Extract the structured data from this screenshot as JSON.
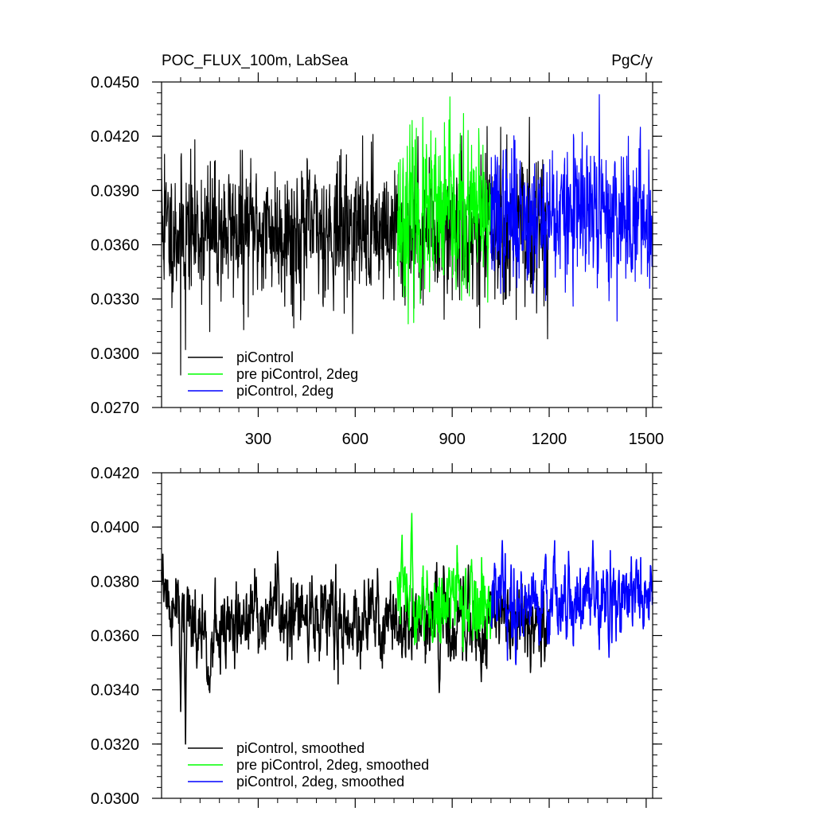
{
  "colors": {
    "black": "#000000",
    "green": "#00ff00",
    "blue": "#0000ff"
  },
  "chart_data": [
    {
      "type": "line",
      "title_left": "POC_FLUX_100m, LabSea",
      "title_right": "PgC/y",
      "xlim": [
        1,
        1520
      ],
      "ylim": [
        0.027,
        0.045
      ],
      "ytick_values": [
        0.027,
        0.03,
        0.033,
        0.036,
        0.039,
        0.042,
        0.045
      ],
      "ytick_labels": [
        "0.0270",
        "0.0300",
        "0.0330",
        "0.0360",
        "0.0390",
        "0.0420",
        "0.0450"
      ],
      "xtick_values": [
        300,
        600,
        900,
        1200,
        1500
      ],
      "xtick_labels": [
        "300",
        "600",
        "900",
        "1200",
        "1500"
      ],
      "legend": [
        "piControl",
        "pre piControl, 2deg",
        "piControl, 2deg"
      ],
      "series": [
        {
          "name": "piControl",
          "color": "#000000",
          "start": 1,
          "end": 1200,
          "mean": 0.0368,
          "sd": 0.00185,
          "seed": 11,
          "trend": 5e-05,
          "features": [
            [
              1,
              0.0402
            ],
            [
              10,
              0.041
            ],
            [
              20,
              0.0382
            ],
            [
              60,
              0.0288
            ],
            [
              75,
              0.0302
            ],
            [
              150,
              0.0312
            ],
            [
              255,
              0.0313
            ],
            [
              410,
              0.0314
            ],
            [
              655,
              0.0421
            ],
            [
              885,
              0.0333
            ],
            [
              985,
              0.0314
            ],
            [
              1050,
              0.0425
            ],
            [
              1195,
              0.0308
            ],
            [
              1120,
              0.0399
            ]
          ]
        },
        {
          "name": "pre piControl, 2deg",
          "color": "#00ff00",
          "start": 730,
          "end": 1020,
          "mean": 0.0375,
          "sd": 0.0022,
          "seed": 23,
          "trend": 0.0,
          "features": [
            [
              890,
              0.0429
            ],
            [
              785,
              0.0418
            ],
            [
              830,
              0.0334
            ],
            [
              960,
              0.0415
            ]
          ]
        },
        {
          "name": "piControl, 2deg",
          "color": "#0000ff",
          "start": 1020,
          "end": 1520,
          "mean": 0.0376,
          "sd": 0.0019,
          "seed": 37,
          "trend": 0.0,
          "features": [
            [
              1355,
              0.0443
            ],
            [
              1275,
              0.0421
            ],
            [
              1210,
              0.0412
            ],
            [
              1385,
              0.0329
            ],
            [
              1445,
              0.042
            ]
          ]
        }
      ]
    },
    {
      "type": "line",
      "xlim": [
        1,
        1520
      ],
      "ylim": [
        0.03,
        0.042
      ],
      "ytick_values": [
        0.03,
        0.032,
        0.034,
        0.036,
        0.038,
        0.04,
        0.042
      ],
      "ytick_labels": [
        "0.0300",
        "0.0320",
        "0.0340",
        "0.0360",
        "0.0380",
        "0.0400",
        "0.0420"
      ],
      "xtick_values": [
        300,
        600,
        900,
        1200,
        1500
      ],
      "legend": [
        "piControl, smoothed",
        "pre piControl, 2deg, smoothed",
        "piControl, 2deg, smoothed"
      ],
      "series": [
        {
          "name": "piControl, smoothed",
          "color": "#000000",
          "start": 1,
          "end": 1200,
          "mean": 0.0365,
          "sd": 0.00075,
          "seed": 51,
          "trend": 0.0,
          "features": [
            [
              5,
              0.039
            ],
            [
              40,
              0.037
            ],
            [
              60,
              0.0332
            ],
            [
              75,
              0.032
            ],
            [
              110,
              0.0348
            ],
            [
              150,
              0.0339
            ],
            [
              360,
              0.0391
            ],
            [
              455,
              0.035
            ],
            [
              770,
              0.0362
            ],
            [
              860,
              0.0339
            ],
            [
              950,
              0.0386
            ],
            [
              990,
              0.0343
            ],
            [
              1050,
              0.0377
            ],
            [
              1190,
              0.0356
            ]
          ],
          "base": [
            [
              1,
              0.0375
            ],
            [
              150,
              0.0358
            ],
            [
              300,
              0.0368
            ],
            [
              730,
              0.0365
            ],
            [
              1200,
              0.0365
            ]
          ]
        },
        {
          "name": "pre piControl, 2deg, smoothed",
          "color": "#00ff00",
          "start": 730,
          "end": 1020,
          "mean": 0.0372,
          "sd": 0.0007,
          "seed": 63,
          "trend": 0.0,
          "features": [
            [
              745,
              0.0397
            ],
            [
              775,
              0.0405
            ],
            [
              840,
              0.0358
            ],
            [
              890,
              0.0385
            ],
            [
              960,
              0.0388
            ]
          ]
        },
        {
          "name": "piControl, 2deg, smoothed",
          "color": "#0000ff",
          "start": 1020,
          "end": 1520,
          "mean": 0.0373,
          "sd": 0.00075,
          "seed": 79,
          "trend": 0.0,
          "features": [
            [
              1055,
              0.0395
            ],
            [
              1260,
              0.0391
            ],
            [
              1335,
              0.0395
            ],
            [
              1385,
              0.0352
            ],
            [
              1470,
              0.0388
            ]
          ]
        }
      ]
    }
  ]
}
